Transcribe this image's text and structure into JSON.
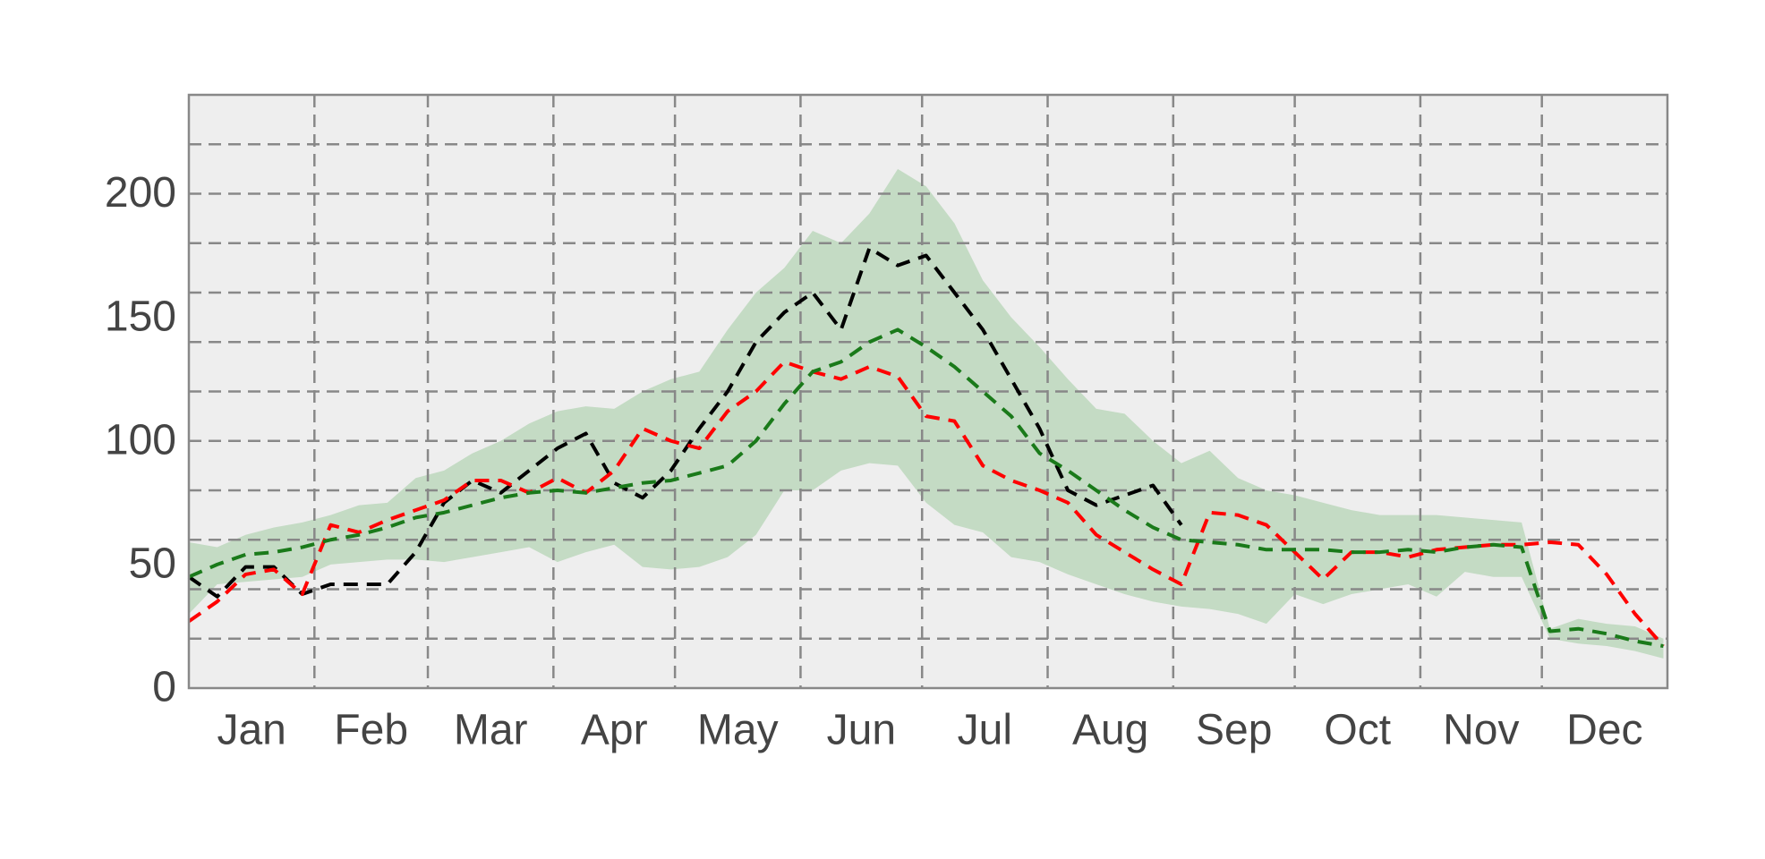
{
  "chart_data": {
    "type": "line",
    "x": [
      0,
      7,
      14,
      21,
      28,
      35,
      42,
      49,
      56,
      63,
      70,
      77,
      84,
      91,
      98,
      105,
      112,
      119,
      126,
      133,
      140,
      147,
      154,
      161,
      168,
      175,
      182,
      189,
      196,
      203,
      210,
      217,
      224,
      231,
      238,
      245,
      252,
      259,
      266,
      273,
      280,
      287,
      294,
      301,
      308,
      315,
      322,
      329,
      336,
      343,
      350,
      357,
      364
    ],
    "xlim": [
      0,
      365
    ],
    "xticks": [
      {
        "value": 15.5,
        "label": "Jan"
      },
      {
        "value": 45,
        "label": "Feb"
      },
      {
        "value": 74.5,
        "label": "Mar"
      },
      {
        "value": 105,
        "label": "Apr"
      },
      {
        "value": 135.5,
        "label": "May"
      },
      {
        "value": 166,
        "label": "Jun"
      },
      {
        "value": 196.5,
        "label": "Jul"
      },
      {
        "value": 227.5,
        "label": "Aug"
      },
      {
        "value": 258,
        "label": "Sep"
      },
      {
        "value": 288.5,
        "label": "Oct"
      },
      {
        "value": 319,
        "label": "Nov"
      },
      {
        "value": 349.5,
        "label": "Dec"
      }
    ],
    "xgrid": [
      31,
      59,
      90,
      120,
      151,
      181,
      212,
      243,
      273,
      304,
      334
    ],
    "ylim": [
      0,
      240
    ],
    "yticks": [
      0,
      50,
      100,
      150,
      200
    ],
    "ygrid": [
      20,
      40,
      60,
      80,
      100,
      120,
      140,
      160,
      180,
      200,
      220
    ],
    "grid": true,
    "band": {
      "color": "#c4dbc4",
      "upper": [
        59,
        57,
        62,
        65,
        67,
        70,
        74,
        75,
        85,
        88,
        95,
        100,
        107,
        112,
        114,
        113,
        120,
        125,
        128,
        145,
        160,
        170,
        185,
        180,
        192,
        210,
        203,
        188,
        165,
        150,
        138,
        125,
        113,
        111,
        100,
        91,
        96,
        85,
        80,
        78,
        75,
        72,
        70,
        70,
        70,
        69,
        68,
        67,
        24,
        28,
        26,
        25,
        20
      ],
      "lower": [
        30,
        42,
        43,
        44,
        45,
        50,
        51,
        52,
        52,
        51,
        53,
        55,
        57,
        51,
        55,
        58,
        49,
        48,
        49,
        53,
        62,
        80,
        80,
        88,
        91,
        90,
        75,
        66,
        63,
        53,
        51,
        46,
        42,
        38,
        35,
        33,
        32,
        30,
        26,
        38,
        34,
        38,
        40,
        42,
        37,
        47,
        45,
        45,
        20,
        18,
        17,
        15,
        12
      ]
    },
    "series": [
      {
        "color": "#000000",
        "values": [
          45,
          37,
          49,
          49,
          38,
          42,
          42,
          42,
          55,
          75,
          84,
          79,
          88,
          97,
          103,
          83,
          77,
          88,
          105,
          120,
          140,
          152,
          160,
          145,
          178,
          171,
          175,
          160,
          145,
          125,
          105,
          80,
          74,
          78,
          82,
          66,
          null,
          null,
          null,
          null,
          null,
          null,
          null,
          null,
          null,
          null,
          null,
          null,
          null,
          null,
          null,
          null,
          null
        ]
      },
      {
        "color": "#ff0000",
        "values": [
          27,
          35,
          46,
          48,
          38,
          66,
          63,
          68,
          72,
          76,
          84,
          84,
          79,
          85,
          79,
          88,
          105,
          100,
          97,
          112,
          120,
          132,
          128,
          125,
          130,
          126,
          110,
          108,
          90,
          84,
          80,
          75,
          62,
          55,
          48,
          42,
          71,
          70,
          66,
          55,
          44,
          55,
          55,
          53,
          56,
          57,
          58,
          58,
          59,
          58,
          46,
          30,
          17
        ]
      },
      {
        "color": "#1a7a1a",
        "values": [
          45,
          50,
          54,
          55,
          57,
          60,
          62,
          65,
          69,
          71,
          74,
          77,
          79,
          80,
          79,
          81,
          83,
          84,
          87,
          90,
          100,
          115,
          128,
          132,
          140,
          145,
          138,
          130,
          120,
          110,
          95,
          88,
          80,
          72,
          65,
          60,
          59,
          58,
          56,
          56,
          56,
          55,
          55,
          56,
          55,
          57,
          58,
          57,
          23,
          24,
          22,
          19,
          17
        ]
      }
    ]
  }
}
